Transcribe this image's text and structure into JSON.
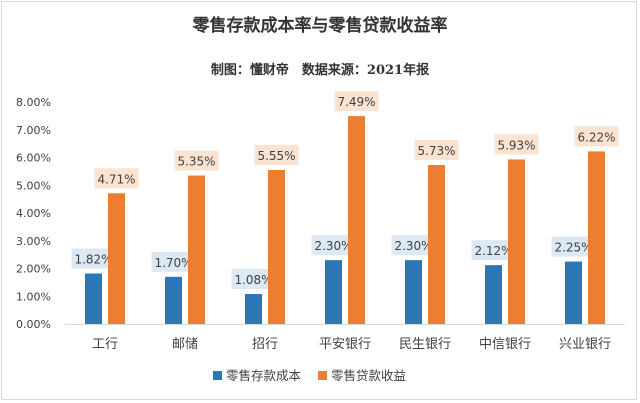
{
  "colors": {
    "deposit": "#2e75b6",
    "loan": "#ed7d31",
    "deposit_label_bg": "#dde8f5",
    "loan_label_bg": "#fbe3d2",
    "grid": "#d9d9d9"
  },
  "chart_data": {
    "type": "bar",
    "title": "零售存款成本率与零售贷款收益率",
    "subtitle": "制图：懂财帝　数据来源：2021年报",
    "categories": [
      "工行",
      "邮储",
      "招行",
      "平安银行",
      "民生银行",
      "中信银行",
      "兴业银行"
    ],
    "series": [
      {
        "name": "零售存款成本",
        "values": [
          1.82,
          1.7,
          1.08,
          2.3,
          2.3,
          2.12,
          2.25
        ],
        "labels": [
          "1.82%",
          "1.70%",
          "1.08%",
          "2.30%",
          "2.30%",
          "2.12%",
          "2.25%"
        ]
      },
      {
        "name": "零售贷款收益",
        "values": [
          4.71,
          5.35,
          5.55,
          7.49,
          5.73,
          5.93,
          6.22
        ],
        "labels": [
          "4.71%",
          "5.35%",
          "5.55%",
          "7.49%",
          "5.73%",
          "5.93%",
          "6.22%"
        ]
      }
    ],
    "ylim": [
      0,
      8
    ],
    "yticks": [
      0,
      1,
      2,
      3,
      4,
      5,
      6,
      7,
      8
    ],
    "ytick_labels": [
      "0.00%",
      "1.00%",
      "2.00%",
      "3.00%",
      "4.00%",
      "5.00%",
      "6.00%",
      "7.00%",
      "8.00%"
    ],
    "xlabel": "",
    "ylabel": "",
    "grid": false,
    "legend": "bottom"
  }
}
